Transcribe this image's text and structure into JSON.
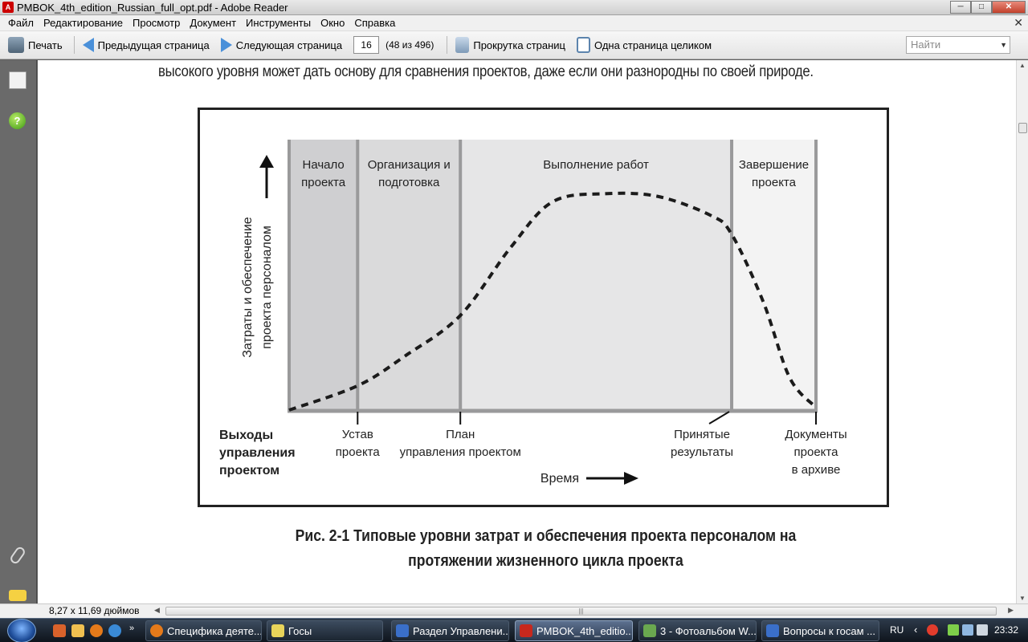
{
  "window": {
    "title": "PMBOK_4th_edition_Russian_full_opt.pdf - Adobe Reader",
    "min": "─",
    "max": "□",
    "close": "✕"
  },
  "menu": {
    "items": [
      "Файл",
      "Редактирование",
      "Просмотр",
      "Документ",
      "Инструменты",
      "Окно",
      "Справка"
    ],
    "close": "✕"
  },
  "toolbar": {
    "print": "Печать",
    "prev_page": "Предыдущая страница",
    "next_page": "Следующая страница",
    "page_number": "16",
    "page_count": "(48 из 496)",
    "scroll_pages": "Прокрутка страниц",
    "single_page": "Одна страница целиком",
    "find_placeholder": "Найти"
  },
  "document": {
    "body_line": "высокого уровня может дать основу для сравнения проектов, даже если они разнородны по своей природе.",
    "caption_line1": "Рис. 2-1 Типовые уровни затрат и обеспечения проекта персоналом на",
    "caption_line2": "протяжении жизненного цикла проекта"
  },
  "chart_data": {
    "type": "line",
    "y_axis_label": [
      "Затраты и обеспечение",
      "проекта персоналом"
    ],
    "x_axis_label": "Время",
    "phases": [
      {
        "label": [
          "Начало",
          "проекта"
        ],
        "start": 0,
        "end": 0.13,
        "shade": "#cfcfd1"
      },
      {
        "label": [
          "Организация и",
          "подготовка"
        ],
        "start": 0.13,
        "end": 0.325,
        "shade": "#dadadb"
      },
      {
        "label": [
          "Выполнение работ"
        ],
        "start": 0.325,
        "end": 0.84,
        "shade": "#e6e6e7"
      },
      {
        "label": [
          "Завершение",
          "проекта"
        ],
        "start": 0.84,
        "end": 1.0,
        "shade": "#f3f3f3"
      }
    ],
    "outputs_title": [
      "Выходы",
      "управления",
      "проектом"
    ],
    "outputs": [
      {
        "label": [
          "Устав",
          "проекта"
        ],
        "at": 0.13
      },
      {
        "label": [
          "План",
          "управления проектом"
        ],
        "at": 0.325
      },
      {
        "label": [
          "Принятые",
          "результаты"
        ],
        "at": 0.84
      },
      {
        "label": [
          "Документы",
          "проекта",
          "в архиве"
        ],
        "at": 1.0
      }
    ],
    "curve": {
      "x": [
        0.0,
        0.13,
        0.22,
        0.325,
        0.42,
        0.5,
        0.6,
        0.7,
        0.8,
        0.84,
        0.9,
        0.95,
        1.0
      ],
      "y": [
        0.0,
        0.09,
        0.2,
        0.35,
        0.6,
        0.77,
        0.8,
        0.79,
        0.72,
        0.65,
        0.4,
        0.12,
        0.01
      ]
    },
    "style": "dashed"
  },
  "statusbar": {
    "page_size": "8,27 x 11,69 дюймов",
    "h_left": "◀",
    "h_right": "▶",
    "h_grip": "|||"
  },
  "taskbar": {
    "tasks": [
      {
        "label": "Специфика деяте...",
        "color": "#e57a1a"
      },
      {
        "label": "Госы",
        "color": "#e8d45a"
      },
      {
        "label": "Раздел Управлени...",
        "color": "#3a6fc9"
      },
      {
        "label": "PMBOK_4th_editio...",
        "color": "#c7281d"
      },
      {
        "label": "3 - Фотоальбом W...",
        "color": "#6aa84f"
      },
      {
        "label": "Вопросы к госам ...",
        "color": "#3a6fc9"
      }
    ],
    "more": "»",
    "lang": "RU",
    "chevron": "‹",
    "clock": "23:32"
  },
  "scroll": {
    "up": "▲",
    "down": "▼"
  }
}
